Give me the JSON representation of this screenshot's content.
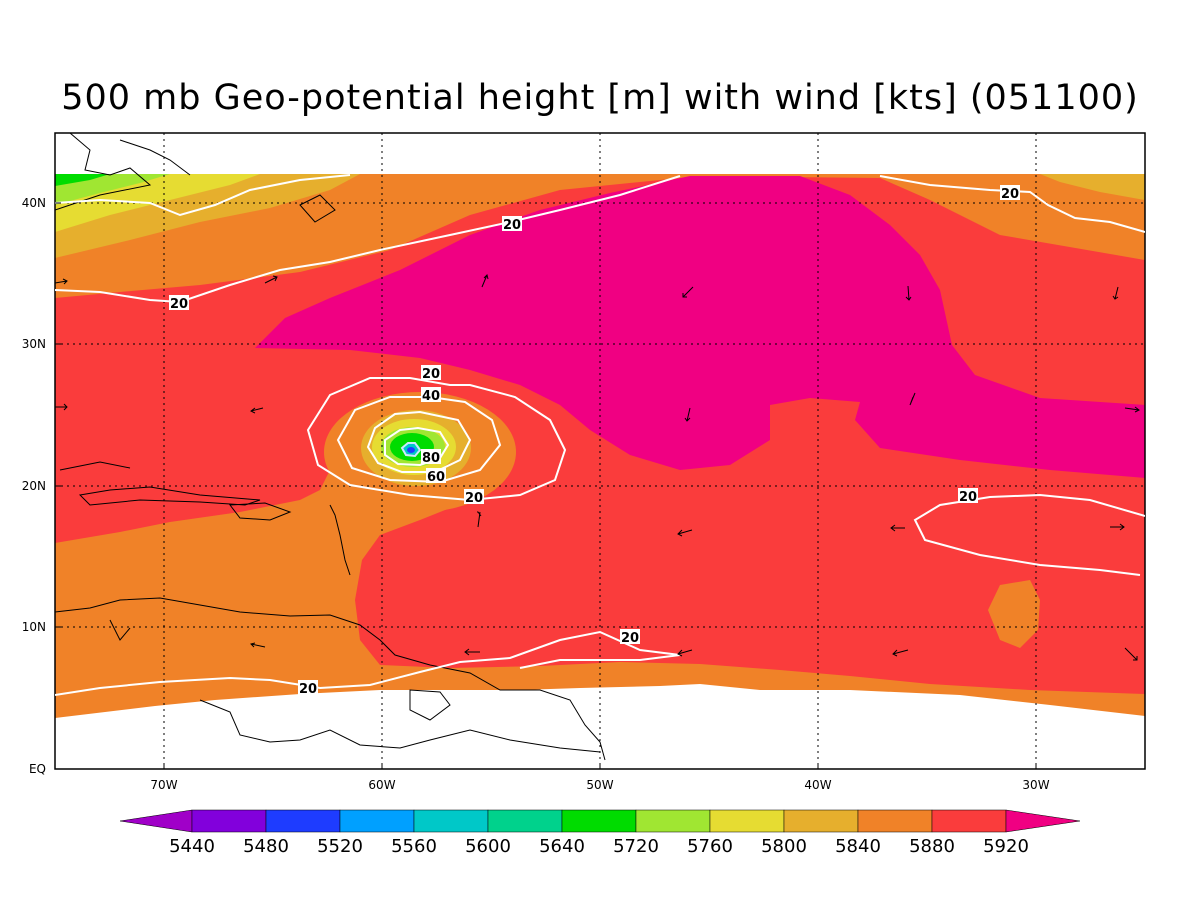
{
  "title": "500 mb Geo-potential height [m] with wind [kts] (051100)",
  "lat_ticks": [
    "40N",
    "30N",
    "20N",
    "10N",
    "EQ"
  ],
  "lon_ticks": [
    "70W",
    "60W",
    "50W",
    "40W",
    "30W"
  ],
  "contour_labels": [
    "20",
    "20",
    "20",
    "20",
    "20",
    "20",
    "20",
    "40",
    "60",
    "80"
  ],
  "colorbar": {
    "labels": [
      "5440",
      "5480",
      "5520",
      "5560",
      "5600",
      "5640",
      "5720",
      "5760",
      "5800",
      "5840",
      "5880",
      "5920"
    ],
    "colors": [
      "#a000c8",
      "#8200dc",
      "#1e3cff",
      "#00a0ff",
      "#00c8c8",
      "#00d28c",
      "#00dc00",
      "#a0e632",
      "#e6dc32",
      "#e6af2d",
      "#f08228",
      "#fa3c3c",
      "#f00082"
    ]
  },
  "fill_colors": {
    "ridge": "#f00082",
    "main": "#fa3c3c",
    "orange": "#f08228",
    "gold": "#e6af2d",
    "yellow": "#e6dc32",
    "lime": "#a0e632",
    "green": "#00dc00",
    "cyan": "#00c8c8",
    "blue": "#1e3cff"
  }
}
